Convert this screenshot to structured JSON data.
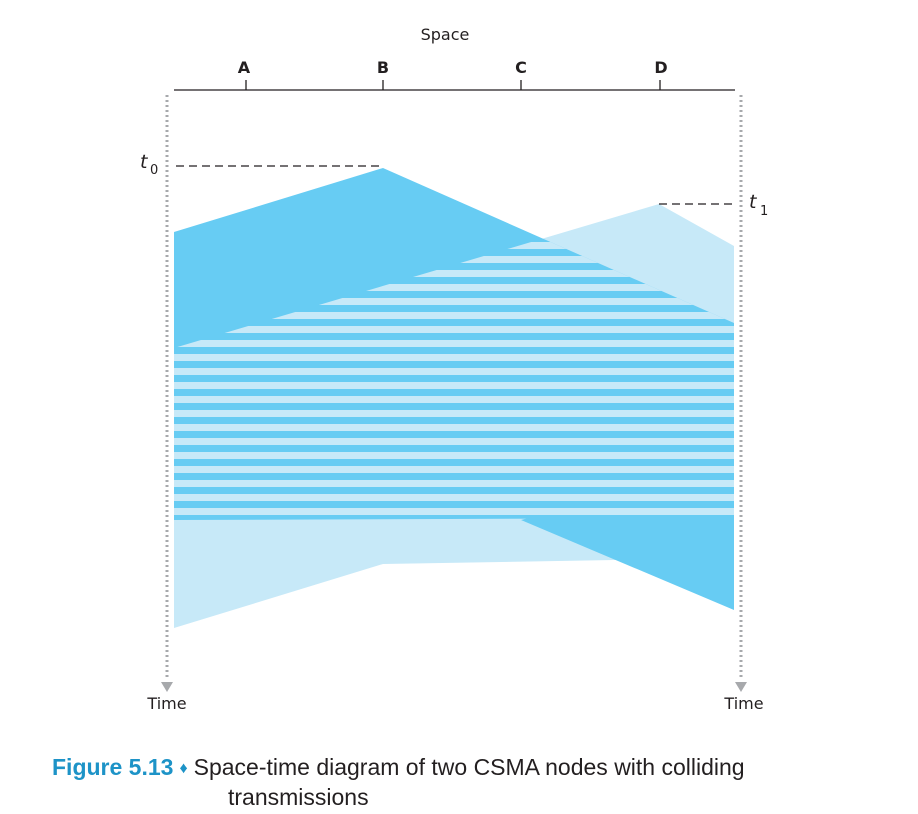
{
  "diagram": {
    "space_label": "Space",
    "nodes": [
      "A",
      "B",
      "C",
      "D"
    ],
    "time_label_left": "Time",
    "time_label_right": "Time",
    "t0_label": "t",
    "t0_sub": "0",
    "t1_label": "t",
    "t1_sub": "1",
    "colors": {
      "transmission_b": "#67ccf3",
      "transmission_d": "#c7e9f8",
      "axis": "#231f20",
      "time_line": "#a7a9ac"
    }
  },
  "caption": {
    "figure_number": "Figure 5.13",
    "diamond": "♦",
    "text_line1": "Space-time diagram of two CSMA nodes with colliding",
    "text_line2": "transmissions"
  }
}
